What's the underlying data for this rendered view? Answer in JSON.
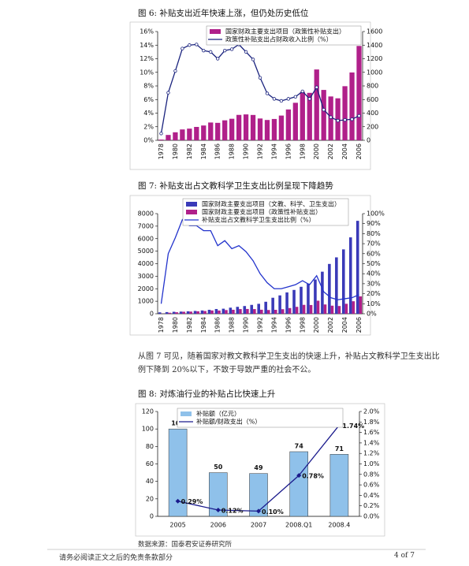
{
  "chart_data": [
    {
      "type": "combo",
      "title": "图 6:  补贴支出近年快速上涨，但仍处历史低位",
      "legend": "top",
      "categories": [
        "1978",
        null,
        "1980",
        null,
        "1982",
        null,
        "1984",
        null,
        "1986",
        null,
        "1988",
        null,
        "1990",
        null,
        "1992",
        null,
        "1994",
        null,
        "1996",
        null,
        "1998",
        null,
        "2000",
        null,
        "2002",
        null,
        "2004",
        null,
        "2006"
      ],
      "series": [
        {
          "name": "国家财政主要支出项目（政策性补贴支出）",
          "type": "bar",
          "axis": "y2",
          "color": "#b0208a",
          "values": [
            11,
            79,
            118,
            160,
            172,
            197,
            218,
            262,
            257,
            294,
            317,
            374,
            381,
            373,
            321,
            299,
            314,
            364,
            454,
            552,
            712,
            698,
            1042,
            741,
            645,
            618,
            796,
            998,
            1388
          ]
        },
        {
          "name": "政策性补贴支出占财政收入比例（%）",
          "type": "line",
          "axis": "y",
          "color": "#1a237e",
          "marker": "circle",
          "values": [
            1.0,
            7.0,
            10.2,
            13.5,
            14.0,
            14.1,
            13.2,
            13.0,
            12.0,
            13.2,
            13.4,
            14.1,
            13.0,
            11.9,
            9.2,
            6.9,
            6.1,
            5.8,
            6.1,
            6.4,
            7.2,
            6.1,
            7.8,
            4.5,
            3.4,
            2.9,
            3.0,
            3.1,
            3.6
          ]
        }
      ],
      "ylim": [
        0,
        16
      ],
      "yticks": [
        {
          "value": 0,
          "label": "0%"
        },
        {
          "value": 2,
          "label": "2%"
        },
        {
          "value": 4,
          "label": "4%"
        },
        {
          "value": 6,
          "label": "6%"
        },
        {
          "value": 8,
          "label": "8%"
        },
        {
          "value": 10,
          "label": "10%"
        },
        {
          "value": 12,
          "label": "12%"
        },
        {
          "value": 14,
          "label": "14%"
        },
        {
          "value": 16,
          "label": "16%"
        }
      ],
      "y2lim": [
        0,
        1600
      ],
      "y2ticks": [
        0,
        200,
        400,
        600,
        800,
        1000,
        1200,
        1400,
        1600
      ]
    },
    {
      "type": "combo",
      "title": "图 7:  补贴支出占文教科学卫生支出比例呈现下降趋势",
      "legend": "top",
      "categories": [
        "1978",
        null,
        "1980",
        null,
        "1982",
        null,
        "1984",
        null,
        "1986",
        null,
        "1988",
        null,
        "1990",
        null,
        "1992",
        null,
        "1994",
        null,
        "1996",
        null,
        "1998",
        null,
        "2000",
        null,
        "2002",
        null,
        "2004",
        null,
        "2006"
      ],
      "series": [
        {
          "name": "国家财政主要支出项目（文教、科学、卫生支出）",
          "type": "bar",
          "axis": "y",
          "color": "#3a3ab8",
          "values": [
            112,
            132,
            156,
            171,
            197,
            224,
            263,
            316,
            379,
            403,
            486,
            553,
            617,
            708,
            793,
            958,
            1278,
            1467,
            1704,
            1903,
            2154,
            2408,
            2737,
            3361,
            3980,
            4506,
            5143,
            6104,
            7426
          ]
        },
        {
          "name": "国家财政主要支出项目（政策性补贴支出）",
          "type": "bar",
          "axis": "y",
          "color": "#b0208a",
          "values": [
            11,
            79,
            118,
            160,
            172,
            197,
            218,
            262,
            257,
            294,
            317,
            374,
            381,
            373,
            321,
            299,
            314,
            364,
            454,
            552,
            712,
            698,
            1042,
            741,
            645,
            618,
            796,
            998,
            1388
          ]
        },
        {
          "name": "补贴支出占文教科学卫生支出比例（%）",
          "type": "line",
          "axis": "y2",
          "color": "#2233cc",
          "values": [
            10,
            60,
            76,
            94,
            88,
            88,
            83,
            83,
            68,
            73,
            65,
            68,
            62,
            53,
            40,
            31,
            25,
            25,
            27,
            29,
            33,
            29,
            38,
            22,
            16,
            14,
            15,
            16,
            19
          ]
        }
      ],
      "ylim": [
        0,
        8000
      ],
      "yticks": [
        0,
        1000,
        2000,
        3000,
        4000,
        5000,
        6000,
        7000,
        8000
      ],
      "y2lim": [
        0,
        100
      ],
      "y2ticks": [
        {
          "value": 0,
          "label": "0%"
        },
        {
          "value": 10,
          "label": "10%"
        },
        {
          "value": 20,
          "label": "20%"
        },
        {
          "value": 30,
          "label": "30%"
        },
        {
          "value": 40,
          "label": "40%"
        },
        {
          "value": 50,
          "label": "50%"
        },
        {
          "value": 60,
          "label": "60%"
        },
        {
          "value": 70,
          "label": "70%"
        },
        {
          "value": 80,
          "label": "80%"
        },
        {
          "value": 90,
          "label": "90%"
        },
        {
          "value": 100,
          "label": "100%"
        }
      ]
    },
    {
      "type": "combo",
      "title": "图 8:  对炼油行业的补贴占比快速上升",
      "legend": "top",
      "categories": [
        "2005",
        "2006",
        "2007",
        "2008.Q1",
        "2008.4"
      ],
      "series": [
        {
          "name": "补贴额（亿元）",
          "type": "bar",
          "axis": "y",
          "color": "#8fc1ea",
          "data_labels": true,
          "values": [
            100,
            50,
            49,
            74,
            71
          ]
        },
        {
          "name": "补贴额/财政支出（%）",
          "type": "line",
          "axis": "y2",
          "color": "#1a1a8c",
          "marker": "diamond",
          "data_labels": true,
          "values": [
            0.29,
            0.12,
            0.1,
            0.78,
            1.74
          ],
          "value_labels": [
            "0.29%",
            "0.12%",
            "0.10%",
            "0.78%",
            "1.74%"
          ]
        }
      ],
      "ylim": [
        0,
        120
      ],
      "yticks": [
        0,
        20,
        40,
        60,
        80,
        100,
        120
      ],
      "y2lim": [
        0,
        2
      ],
      "y2ticks": [
        {
          "value": 0,
          "label": "0.0%"
        },
        {
          "value": 0.2,
          "label": "0.2%"
        },
        {
          "value": 0.4,
          "label": "0.4%"
        },
        {
          "value": 0.6,
          "label": "0.6%"
        },
        {
          "value": 0.8,
          "label": "0.8%"
        },
        {
          "value": 1.0,
          "label": "1.0%"
        },
        {
          "value": 1.2,
          "label": "1.2%"
        },
        {
          "value": 1.4,
          "label": "1.4%"
        },
        {
          "value": 1.6,
          "label": "1.6%"
        },
        {
          "value": 1.8,
          "label": "1.8%"
        },
        {
          "value": 2.0,
          "label": "2.0%"
        }
      ]
    }
  ],
  "text": {
    "paragraph": "从图 7 可见，随着国家对教文教科学卫生支出的快速上升，补贴占文教科学卫生支出比例下降到 20%以下，不致于导致严重的社会不公。",
    "source": "数据来源：国泰君安证券研究所"
  },
  "footer": {
    "disclaimer": "请务必阅读正文之后的免责条款部分",
    "page": "4 of 7"
  }
}
